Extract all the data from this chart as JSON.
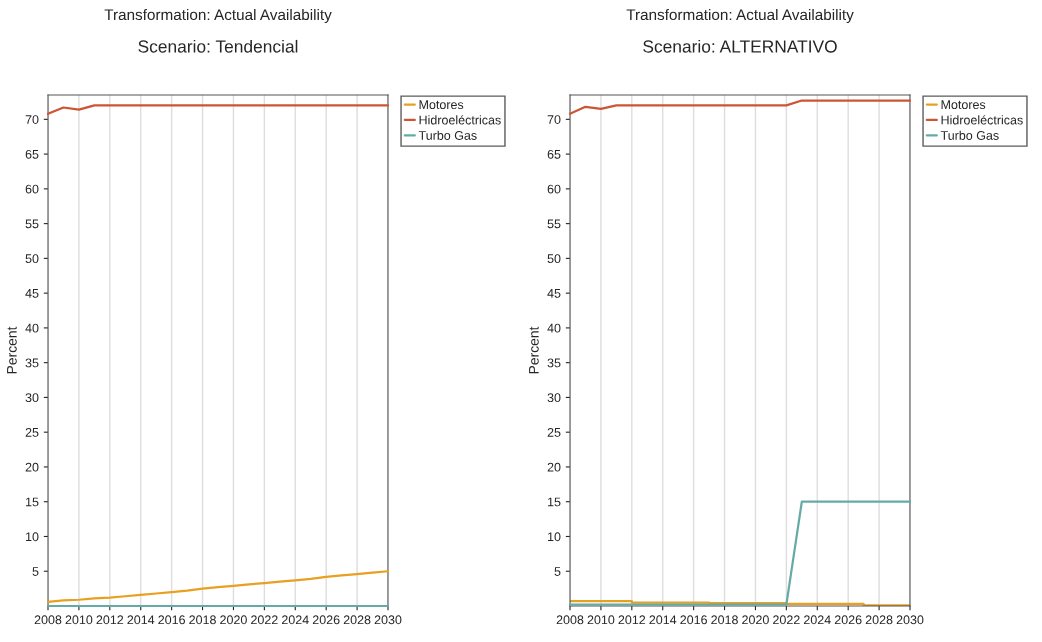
{
  "chart_data": [
    {
      "type": "line",
      "title": "Transformation: Actual Availability",
      "subtitle": "Scenario: Tendencial",
      "ylabel": "Percent",
      "x": [
        2008,
        2009,
        2010,
        2011,
        2012,
        2013,
        2014,
        2015,
        2016,
        2017,
        2018,
        2019,
        2020,
        2021,
        2022,
        2023,
        2024,
        2025,
        2026,
        2027,
        2028,
        2029,
        2030
      ],
      "series": [
        {
          "name": "Motores",
          "color": "#e8a020",
          "values": [
            0.6,
            0.8,
            0.9,
            1.1,
            1.2,
            1.4,
            1.6,
            1.8,
            2.0,
            2.2,
            2.5,
            2.7,
            2.9,
            3.1,
            3.3,
            3.5,
            3.7,
            3.9,
            4.2,
            4.4,
            4.6,
            4.8,
            5.0
          ]
        },
        {
          "name": "Hidroeléctricas",
          "color": "#cc5533",
          "values": [
            70.8,
            71.7,
            71.4,
            72.0,
            72.0,
            72.0,
            72.0,
            72.0,
            72.0,
            72.0,
            72.0,
            72.0,
            72.0,
            72.0,
            72.0,
            72.0,
            72.0,
            72.0,
            72.0,
            72.0,
            72.0,
            72.0,
            72.0
          ]
        },
        {
          "name": "Turbo Gas",
          "color": "#66aaa8",
          "x": [
            2008,
            2030
          ],
          "values": [
            0,
            0
          ]
        }
      ],
      "xlim": [
        2008,
        2030
      ],
      "xticks": [
        2008,
        2010,
        2012,
        2014,
        2016,
        2018,
        2020,
        2022,
        2024,
        2026,
        2028,
        2030
      ],
      "ylim": [
        0,
        73.5
      ],
      "yticks": [
        5,
        10,
        15,
        20,
        25,
        30,
        35,
        40,
        45,
        50,
        55,
        60,
        65,
        70
      ],
      "grid": "x",
      "legend": "right"
    },
    {
      "type": "line",
      "title": "Transformation: Actual Availability",
      "subtitle": "Scenario: ALTERNATIVO",
      "ylabel": "Percent",
      "x": [
        2008,
        2009,
        2010,
        2011,
        2012,
        2013,
        2014,
        2015,
        2016,
        2017,
        2018,
        2019,
        2020,
        2021,
        2022,
        2023,
        2024,
        2025,
        2026,
        2027,
        2028,
        2029,
        2030
      ],
      "series": [
        {
          "name": "Motores",
          "color": "#e8a020",
          "type": "step",
          "x": [
            2008,
            2012,
            2017,
            2022,
            2027,
            2030
          ],
          "values": [
            0.7,
            0.5,
            0.4,
            0.3,
            0.1,
            0.1
          ]
        },
        {
          "name": "Hidroeléctricas",
          "color": "#cc5533",
          "values": [
            70.8,
            71.8,
            71.5,
            72.0,
            72.0,
            72.0,
            72.0,
            72.0,
            72.0,
            72.0,
            72.0,
            72.0,
            72.0,
            72.0,
            72.0,
            72.7,
            72.7,
            72.7,
            72.7,
            72.7,
            72.7,
            72.7,
            72.7
          ]
        },
        {
          "name": "Turbo Gas",
          "color": "#66aaa8",
          "x": [
            2008,
            2022,
            2023,
            2030
          ],
          "values": [
            0.2,
            0.2,
            15,
            15
          ]
        }
      ],
      "xlim": [
        2008,
        2030
      ],
      "xticks": [
        2008,
        2010,
        2012,
        2014,
        2016,
        2018,
        2020,
        2022,
        2024,
        2026,
        2028,
        2030
      ],
      "ylim": [
        0,
        73.5
      ],
      "yticks": [
        5,
        10,
        15,
        20,
        25,
        30,
        35,
        40,
        45,
        50,
        55,
        60,
        65,
        70
      ],
      "grid": "x",
      "legend": "right"
    }
  ]
}
